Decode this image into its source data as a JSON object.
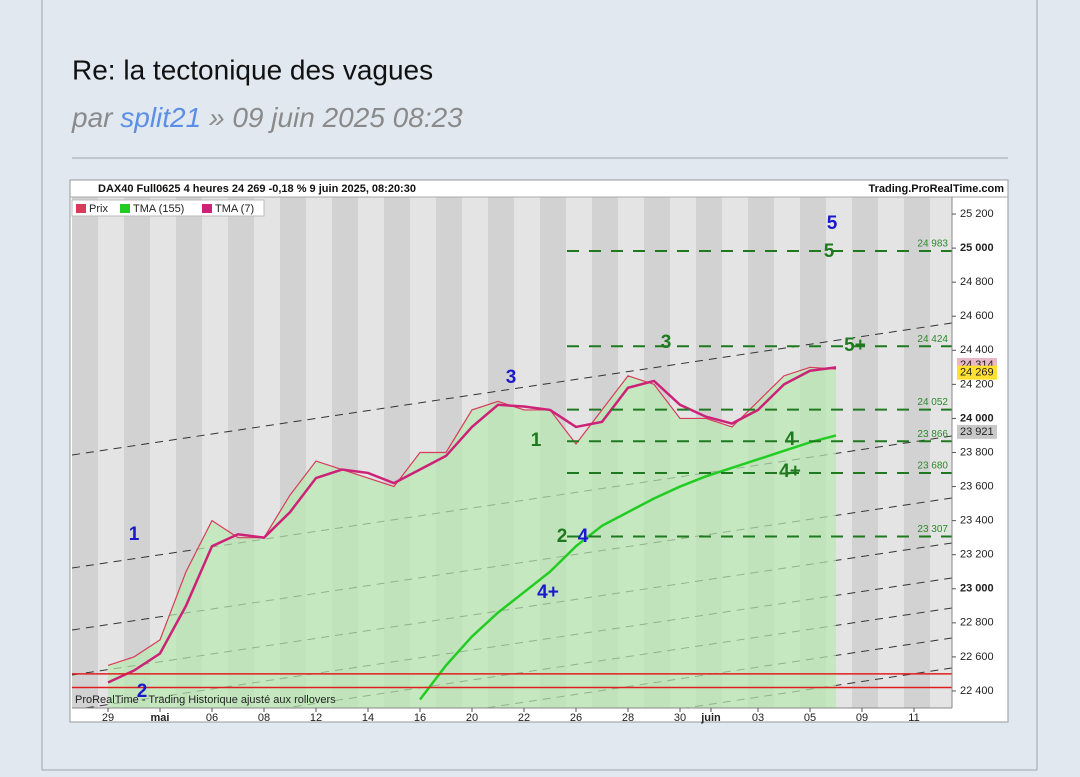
{
  "post": {
    "title": "Re: la tectonique des vagues",
    "by": "par",
    "author": "split21",
    "date": "» 09 juin 2025 08:23"
  },
  "chart_data": {
    "type": "line",
    "title": "DAX40 Full0625 4 heures 24 269 -0,18 % 9 juin 2025, 08:20:30",
    "source": "Trading.ProRealTime.com",
    "footer": "ProRealTime - Trading  Historique ajusté aux rollovers",
    "categories": [
      "29",
      null,
      "mai",
      null,
      "06",
      null,
      "08",
      null,
      "12",
      null,
      "14",
      null,
      "16",
      null,
      "20",
      null,
      "22",
      null,
      "26",
      null,
      "28",
      null,
      "30",
      "juin",
      null,
      "03",
      null,
      "05",
      null,
      "09",
      null,
      "11"
    ],
    "series": [
      {
        "name": "Prix",
        "color": "#d93b5b",
        "values": [
          22550,
          22600,
          22700,
          23100,
          23400,
          23300,
          23300,
          23550,
          23750,
          23700,
          23650,
          23600,
          23800,
          23800,
          24050,
          24100,
          24050,
          24050,
          23850,
          24050,
          24250,
          24200,
          24000,
          24000,
          23950,
          24100,
          24250,
          24300,
          24290,
          null,
          null,
          null
        ]
      },
      {
        "name": "TMA (155)",
        "color": "#22cc22",
        "values": [
          null,
          null,
          null,
          null,
          null,
          null,
          null,
          null,
          null,
          null,
          null,
          null,
          22350,
          22550,
          22720,
          22860,
          22980,
          23100,
          23250,
          23370,
          23450,
          23530,
          23600,
          23660,
          23710,
          23760,
          23810,
          23860,
          23900,
          null,
          null,
          null
        ]
      },
      {
        "name": "TMA (7)",
        "color": "#cc2277",
        "values": [
          22450,
          22520,
          22620,
          22900,
          23250,
          23320,
          23300,
          23450,
          23650,
          23700,
          23680,
          23620,
          23700,
          23780,
          23950,
          24080,
          24070,
          24050,
          23950,
          23980,
          24180,
          24220,
          24080,
          24010,
          23970,
          24050,
          24200,
          24280,
          24300,
          null,
          null,
          null
        ]
      }
    ],
    "ylim": [
      22300,
      25300
    ],
    "yticks": [
      {
        "value": 22400,
        "label": "22 400"
      },
      {
        "value": 22600,
        "label": "22 600"
      },
      {
        "value": 22800,
        "label": "22 800"
      },
      {
        "value": 23000,
        "label": "23 000"
      },
      {
        "value": 23200,
        "label": "23 200"
      },
      {
        "value": 23400,
        "label": "23 400"
      },
      {
        "value": 23600,
        "label": "23 600"
      },
      {
        "value": 23800,
        "label": "23 800"
      },
      {
        "value": 24000,
        "label": "24 000"
      },
      {
        "value": 24200,
        "label": "24 200"
      },
      {
        "value": 24400,
        "label": "24 400"
      },
      {
        "value": 24600,
        "label": "24 600"
      },
      {
        "value": 24800,
        "label": "24 800"
      },
      {
        "value": 25000,
        "label": "25 000"
      },
      {
        "value": 25200,
        "label": "25 200"
      }
    ],
    "levels": [
      {
        "value": 24983,
        "label": "24 983"
      },
      {
        "value": 24424,
        "label": "24 424"
      },
      {
        "value": 24052,
        "label": "24 052"
      },
      {
        "value": 23866,
        "label": "23 866"
      },
      {
        "value": 23680,
        "label": "23 680"
      },
      {
        "value": 23307,
        "label": "23 307"
      }
    ],
    "support_lines": [
      22500,
      22420
    ],
    "price_tags": [
      {
        "value": 24314,
        "label": "24 314",
        "color": "#e8b8c8"
      },
      {
        "value": 24269,
        "label": "24 269",
        "color": "#ffe030"
      },
      {
        "value": 23921,
        "label": "23 921",
        "color": "#c8c8c8"
      }
    ],
    "annotations": [
      {
        "text": "5",
        "color": "#1a1acc"
      },
      {
        "text": "5",
        "color": "#1f7a1f"
      },
      {
        "text": "5+",
        "color": "#1f7a1f"
      },
      {
        "text": "3",
        "color": "#1f7a1f"
      },
      {
        "text": "3",
        "color": "#1a1acc"
      },
      {
        "text": "1",
        "color": "#1f7a1f"
      },
      {
        "text": "4",
        "color": "#1f7a1f"
      },
      {
        "text": "4+",
        "color": "#1f7a1f"
      },
      {
        "text": "1",
        "color": "#1a1acc"
      },
      {
        "text": "2",
        "color": "#1f7a1f"
      },
      {
        "text": "4",
        "color": "#1a1acc"
      },
      {
        "text": "4+",
        "color": "#1a1acc"
      },
      {
        "text": "2",
        "color": "#1a1acc"
      }
    ]
  }
}
